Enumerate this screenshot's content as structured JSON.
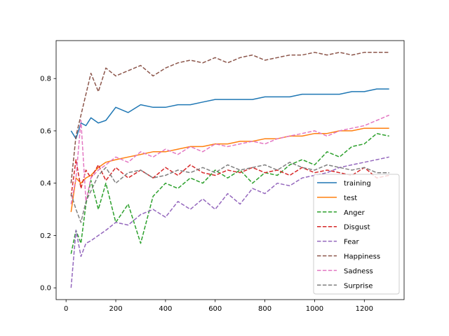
{
  "chart_data": {
    "type": "line",
    "title": "",
    "xlabel": "",
    "ylabel": "",
    "xlim": [
      -40,
      1360
    ],
    "ylim": [
      -0.045,
      0.945
    ],
    "xticks": [
      0,
      200,
      400,
      600,
      800,
      1000,
      1200
    ],
    "yticks": [
      0.0,
      0.2,
      0.4,
      0.6,
      0.8
    ],
    "xtick_labels": [
      "0",
      "200",
      "400",
      "600",
      "800",
      "1000",
      "1200"
    ],
    "ytick_labels": [
      "0.0",
      "0.2",
      "0.4",
      "0.6",
      "0.8"
    ],
    "grid": false,
    "legend_position": "lower-right",
    "x": [
      20,
      40,
      60,
      80,
      100,
      130,
      160,
      200,
      250,
      300,
      350,
      400,
      450,
      500,
      550,
      600,
      650,
      700,
      750,
      800,
      850,
      900,
      950,
      1000,
      1050,
      1100,
      1150,
      1200,
      1250,
      1300
    ],
    "series": [
      {
        "name": "training",
        "color": "#1f77b4",
        "style": "solid",
        "values": [
          0.6,
          0.57,
          0.63,
          0.62,
          0.65,
          0.63,
          0.64,
          0.69,
          0.67,
          0.7,
          0.69,
          0.69,
          0.7,
          0.7,
          0.71,
          0.72,
          0.72,
          0.72,
          0.72,
          0.73,
          0.73,
          0.73,
          0.74,
          0.74,
          0.74,
          0.74,
          0.75,
          0.75,
          0.76,
          0.76
        ]
      },
      {
        "name": "test",
        "color": "#ff7f0e",
        "style": "solid",
        "values": [
          0.29,
          0.42,
          0.4,
          0.42,
          0.43,
          0.46,
          0.48,
          0.49,
          0.5,
          0.51,
          0.52,
          0.52,
          0.53,
          0.54,
          0.54,
          0.55,
          0.55,
          0.56,
          0.56,
          0.57,
          0.57,
          0.58,
          0.58,
          0.59,
          0.59,
          0.6,
          0.6,
          0.61,
          0.61,
          0.61
        ]
      },
      {
        "name": "Anger",
        "color": "#2ca02c",
        "style": "dashed",
        "values": [
          0.13,
          0.22,
          0.17,
          0.32,
          0.41,
          0.3,
          0.4,
          0.25,
          0.32,
          0.17,
          0.35,
          0.4,
          0.38,
          0.42,
          0.4,
          0.45,
          0.42,
          0.45,
          0.4,
          0.44,
          0.43,
          0.47,
          0.49,
          0.47,
          0.52,
          0.5,
          0.54,
          0.55,
          0.59,
          0.58
        ]
      },
      {
        "name": "Disgust",
        "color": "#d62728",
        "style": "dashed",
        "values": [
          0.35,
          0.49,
          0.38,
          0.45,
          0.42,
          0.47,
          0.41,
          0.46,
          0.42,
          0.45,
          0.42,
          0.46,
          0.43,
          0.47,
          0.44,
          0.43,
          0.45,
          0.44,
          0.46,
          0.44,
          0.45,
          0.43,
          0.46,
          0.44,
          0.45,
          0.44,
          0.43,
          0.46,
          0.42,
          0.43
        ]
      },
      {
        "name": "Fear",
        "color": "#9467bd",
        "style": "dashed",
        "values": [
          0.0,
          0.22,
          0.12,
          0.17,
          0.18,
          0.2,
          0.22,
          0.25,
          0.24,
          0.28,
          0.3,
          0.27,
          0.33,
          0.3,
          0.34,
          0.3,
          0.36,
          0.32,
          0.38,
          0.36,
          0.4,
          0.39,
          0.42,
          0.43,
          0.44,
          0.46,
          0.47,
          0.48,
          0.49,
          0.5
        ]
      },
      {
        "name": "Happiness",
        "color": "#8c564b",
        "style": "dashed",
        "values": [
          0.4,
          0.58,
          0.66,
          0.74,
          0.82,
          0.75,
          0.84,
          0.81,
          0.83,
          0.85,
          0.81,
          0.84,
          0.86,
          0.87,
          0.86,
          0.88,
          0.86,
          0.88,
          0.89,
          0.87,
          0.88,
          0.89,
          0.89,
          0.9,
          0.89,
          0.9,
          0.89,
          0.9,
          0.9,
          0.9
        ]
      },
      {
        "name": "Sadness",
        "color": "#e377c2",
        "style": "dashed",
        "values": [
          0.32,
          0.42,
          0.64,
          0.33,
          0.42,
          0.45,
          0.47,
          0.5,
          0.48,
          0.52,
          0.5,
          0.53,
          0.51,
          0.54,
          0.52,
          0.55,
          0.54,
          0.55,
          0.56,
          0.55,
          0.57,
          0.58,
          0.59,
          0.6,
          0.58,
          0.6,
          0.61,
          0.62,
          0.64,
          0.66
        ]
      },
      {
        "name": "Surprise",
        "color": "#7f7f7f",
        "style": "dashed",
        "values": [
          0.36,
          0.3,
          0.25,
          0.33,
          0.37,
          0.43,
          0.46,
          0.4,
          0.44,
          0.45,
          0.42,
          0.43,
          0.45,
          0.44,
          0.46,
          0.44,
          0.47,
          0.45,
          0.46,
          0.47,
          0.45,
          0.48,
          0.46,
          0.45,
          0.47,
          0.46,
          0.45,
          0.46,
          0.44,
          0.44
        ]
      }
    ]
  }
}
